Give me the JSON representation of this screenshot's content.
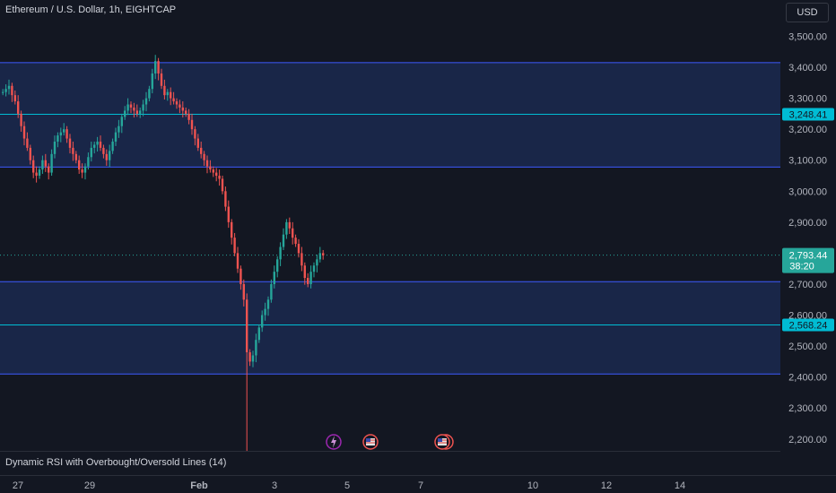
{
  "header": {
    "title": "Ethereum / U.S. Dollar, 1h, EIGHTCAP",
    "currency_button": "USD"
  },
  "indicator": {
    "label": "Dynamic RSI with Overbought/Oversold Lines (14)"
  },
  "colors": {
    "background": "#131722",
    "up": "#26a69a",
    "down": "#ef5350",
    "zone_fill": "#1c2a52",
    "zone_border": "#3d5afe",
    "level_line": "#00bcd4"
  },
  "y_axis": {
    "ticks": [
      "3,500.00",
      "3,400.00",
      "3,300.00",
      "3,200.00",
      "3,100.00",
      "3,000.00",
      "2,900.00",
      "2,800.00",
      "2,700.00",
      "2,600.00",
      "2,500.00",
      "2,400.00",
      "2,300.00",
      "2,200.00"
    ]
  },
  "x_axis": {
    "ticks": [
      "27",
      "29",
      "Feb",
      "3",
      "5",
      "7",
      "10",
      "12",
      "14"
    ]
  },
  "zones": [
    {
      "top": 3415,
      "bottom": 3078
    },
    {
      "top": 2708,
      "bottom": 2410
    }
  ],
  "levels": [
    {
      "value": 3248.41,
      "label": "3,248.41"
    },
    {
      "value": 2568.24,
      "label": "2,568.24"
    }
  ],
  "last_price": {
    "value": 2793.44,
    "label": "2,793.44",
    "countdown": "38:20"
  },
  "events": [
    {
      "icon": "lightning-icon"
    },
    {
      "icon": "us-flag-icon"
    },
    {
      "icon": "us-flag-stack-icon"
    }
  ],
  "chart_data": {
    "type": "line",
    "series": [
      {
        "values": [
          3320,
          3330,
          3340,
          3310,
          3290,
          3250,
          3210,
          3170,
          3140,
          3100,
          3060,
          3050,
          3070,
          3100,
          3080,
          3060,
          3120,
          3160,
          3180,
          3190,
          3200,
          3170,
          3140,
          3120,
          3100,
          3070,
          3060,
          3080,
          3110,
          3140,
          3150,
          3160,
          3140,
          3120,
          3100,
          3130,
          3160,
          3190,
          3210,
          3240,
          3260,
          3280,
          3270,
          3260,
          3250,
          3260,
          3280,
          3300,
          3330,
          3380,
          3420,
          3380,
          3340,
          3310,
          3320,
          3300,
          3290,
          3280,
          3270,
          3260,
          3250,
          3230,
          3200,
          3170,
          3140,
          3120,
          3100,
          3080,
          3070,
          3060,
          3050,
          3040,
          3000,
          2950,
          2900,
          2850,
          2800,
          2750,
          2700,
          2650,
          2480,
          2450,
          2470,
          2520,
          2560,
          2600,
          2620,
          2650,
          2700,
          2740,
          2780,
          2820,
          2860,
          2900,
          2880,
          2850,
          2830,
          2800,
          2760,
          2720,
          2700,
          2740,
          2760,
          2780,
          2800,
          2793
        ]
      }
    ],
    "ylim": [
      2150,
      3560
    ]
  }
}
